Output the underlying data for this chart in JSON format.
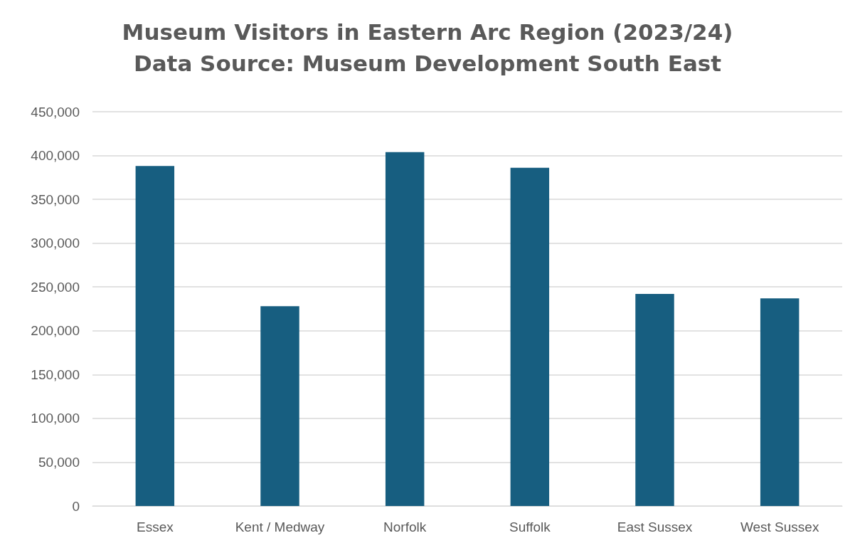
{
  "chart_data": {
    "type": "bar",
    "title": "Museum Visitors in Eastern Arc Region (2023/24)\nData Source: Museum Development South East",
    "categories": [
      "Essex",
      "Kent / Medway",
      "Norfolk",
      "Suffolk",
      "East Sussex",
      "West Sussex"
    ],
    "values": [
      388000,
      228000,
      404000,
      386000,
      242000,
      237000
    ],
    "color": "#175e80",
    "ylim": [
      0,
      450000
    ],
    "yticks": [
      0,
      {
        "value": 50000,
        "label": "50,000"
      },
      {
        "value": 100000,
        "label": "100,000"
      },
      {
        "value": 150000,
        "label": "150,000"
      },
      {
        "value": 200000,
        "label": "200,000"
      },
      {
        "value": 250000,
        "label": "250,000"
      },
      {
        "value": 300000,
        "label": "300,000"
      },
      {
        "value": 350000,
        "label": "350,000"
      },
      {
        "value": 400000,
        "label": "400,000"
      },
      {
        "value": 450000,
        "label": "450,000"
      }
    ],
    "grid": "y"
  }
}
